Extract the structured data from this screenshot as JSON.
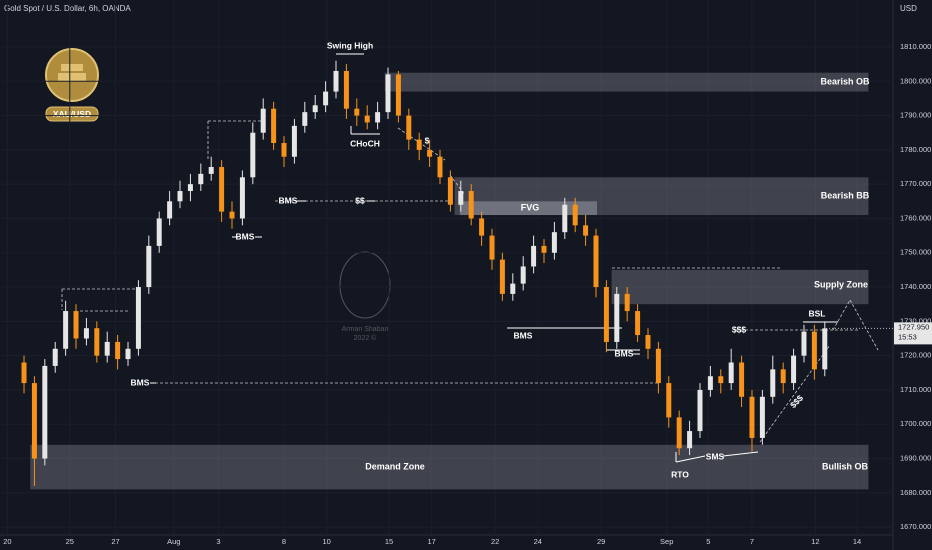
{
  "chart_data": {
    "type": "candlestick",
    "title": "Gold Spot / U.S. Dollar, 6h, OANDA",
    "currency": "USD",
    "badge": "XAU/USD",
    "watermark": [
      "Arman Shaban",
      "2022 ©"
    ],
    "last_price": {
      "value": 1727.95,
      "label": "1727.950"
    },
    "countdown": "15:53",
    "up_color": "#e6e6e6",
    "down_color": "#f7931a",
    "x": [
      0,
      1,
      2,
      3,
      4,
      5,
      6,
      7,
      8,
      9,
      10,
      11,
      12,
      13,
      14,
      15,
      16,
      17,
      18,
      19,
      20,
      21,
      22,
      23,
      24,
      25,
      26,
      27,
      28,
      29,
      30,
      31,
      32,
      33,
      34,
      35,
      36,
      37,
      38,
      39,
      40,
      41,
      42,
      43,
      44,
      45,
      46,
      47,
      48,
      49,
      50,
      51,
      52,
      53,
      54,
      55,
      56,
      57,
      58,
      59,
      60,
      61,
      62,
      63,
      64,
      65,
      66,
      67,
      68,
      69,
      70,
      71,
      72,
      73,
      74,
      75,
      76,
      77
    ],
    "open": [
      1718,
      1712,
      1690,
      1717,
      1722,
      1733,
      1725,
      1728,
      1720,
      1724,
      1719,
      1722,
      1740,
      1752,
      1760,
      1765,
      1768,
      1770,
      1773,
      1775,
      1762,
      1760,
      1772,
      1785,
      1792,
      1782,
      1778,
      1787,
      1791,
      1793,
      1797,
      1803,
      1792,
      1790,
      1788,
      1791,
      1802,
      1790,
      1783,
      1780,
      1778,
      1772,
      1764,
      1768,
      1760,
      1755,
      1748,
      1738,
      1741,
      1746,
      1752,
      1750,
      1756,
      1764,
      1758,
      1755,
      1740,
      1724,
      1738,
      1733,
      1726,
      1722,
      1712,
      1702,
      1693,
      1698,
      1710,
      1714,
      1712,
      1718,
      1708,
      1696,
      1708,
      1716,
      1712,
      1720,
      1727,
      1716
    ],
    "high": [
      1720,
      1714,
      1719,
      1724,
      1736,
      1735,
      1731,
      1730,
      1727,
      1726,
      1724,
      1742,
      1755,
      1762,
      1768,
      1771,
      1773,
      1776,
      1778,
      1777,
      1765,
      1774,
      1788,
      1795,
      1794,
      1784,
      1789,
      1794,
      1796,
      1800,
      1806,
      1805,
      1795,
      1793,
      1794,
      1804,
      1803,
      1792,
      1785,
      1783,
      1780,
      1774,
      1771,
      1770,
      1762,
      1757,
      1750,
      1744,
      1749,
      1755,
      1754,
      1759,
      1766,
      1766,
      1761,
      1757,
      1742,
      1740,
      1740,
      1735,
      1728,
      1724,
      1714,
      1704,
      1701,
      1712,
      1717,
      1716,
      1722,
      1720,
      1710,
      1710,
      1720,
      1718,
      1722,
      1729,
      1729,
      1730
    ],
    "low": [
      1709,
      1682,
      1688,
      1715,
      1720,
      1722,
      1723,
      1718,
      1718,
      1716,
      1717,
      1720,
      1738,
      1750,
      1758,
      1763,
      1765,
      1768,
      1771,
      1759,
      1757,
      1758,
      1770,
      1783,
      1780,
      1775,
      1776,
      1785,
      1789,
      1791,
      1795,
      1789,
      1787,
      1786,
      1786,
      1789,
      1788,
      1780,
      1777,
      1775,
      1770,
      1762,
      1762,
      1758,
      1752,
      1745,
      1736,
      1736,
      1739,
      1744,
      1747,
      1748,
      1754,
      1756,
      1752,
      1737,
      1721,
      1722,
      1730,
      1724,
      1719,
      1709,
      1699,
      1691,
      1691,
      1696,
      1708,
      1709,
      1710,
      1705,
      1692,
      1694,
      1706,
      1709,
      1710,
      1718,
      1713,
      1714
    ],
    "close": [
      1712,
      1690,
      1717,
      1722,
      1733,
      1725,
      1728,
      1720,
      1724,
      1719,
      1722,
      1740,
      1752,
      1760,
      1765,
      1768,
      1770,
      1773,
      1775,
      1762,
      1760,
      1772,
      1785,
      1792,
      1782,
      1778,
      1787,
      1791,
      1793,
      1797,
      1803,
      1792,
      1790,
      1788,
      1791,
      1802,
      1790,
      1783,
      1780,
      1778,
      1772,
      1764,
      1768,
      1760,
      1755,
      1748,
      1738,
      1741,
      1746,
      1752,
      1750,
      1756,
      1764,
      1758,
      1755,
      1740,
      1724,
      1738,
      1733,
      1726,
      1722,
      1712,
      1702,
      1693,
      1698,
      1710,
      1714,
      1712,
      1718,
      1708,
      1696,
      1708,
      1716,
      1712,
      1720,
      1727,
      1716,
      1727.95
    ],
    "xlim": [
      -2.31,
      83.56
    ],
    "xticks": [
      {
        "value": -1.6,
        "label": "20"
      },
      {
        "value": 4.4,
        "label": "25"
      },
      {
        "value": 8.8,
        "label": "27"
      },
      {
        "value": 14.4,
        "label": "Aug"
      },
      {
        "value": 18.7,
        "label": "3"
      },
      {
        "value": 25,
        "label": "8"
      },
      {
        "value": 29.1,
        "label": "10"
      },
      {
        "value": 35.1,
        "label": "15"
      },
      {
        "value": 39.2,
        "label": "17"
      },
      {
        "value": 45.3,
        "label": "22"
      },
      {
        "value": 49.4,
        "label": "24"
      },
      {
        "value": 55.5,
        "label": "29"
      },
      {
        "value": 61.8,
        "label": "Sep"
      },
      {
        "value": 65.8,
        "label": "5"
      },
      {
        "value": 70,
        "label": "7"
      },
      {
        "value": 76.1,
        "label": "12"
      },
      {
        "value": 80.1,
        "label": "14"
      }
    ],
    "ylim": [
      1667.7,
      1823.7
    ],
    "yticks": [
      {
        "value": 1670,
        "label": "1670.000"
      },
      {
        "value": 1680,
        "label": "1680.000"
      },
      {
        "value": 1690,
        "label": "1690.000"
      },
      {
        "value": 1700,
        "label": "1700.000"
      },
      {
        "value": 1710,
        "label": "1710.000"
      },
      {
        "value": 1720,
        "label": "1720.000"
      },
      {
        "value": 1730,
        "label": "1730.000"
      },
      {
        "value": 1740,
        "label": "1740.000"
      },
      {
        "value": 1750,
        "label": "1750.000"
      },
      {
        "value": 1760,
        "label": "1760.000"
      },
      {
        "value": 1770,
        "label": "1770.000"
      },
      {
        "value": 1780,
        "label": "1780.000"
      },
      {
        "value": 1790,
        "label": "1790.000"
      },
      {
        "value": 1800,
        "label": "1800.000"
      },
      {
        "value": 1810,
        "label": "1810.000"
      }
    ],
    "zones": [
      {
        "label": "Bearish OB",
        "y": [
          1797,
          1802.5
        ],
        "x": [
          34.7,
          81.2
        ]
      },
      {
        "label": "Bearish BB",
        "y": [
          1761,
          1772
        ],
        "x": [
          41.4,
          81.2
        ]
      },
      {
        "label": "FVG",
        "y": [
          1761,
          1765
        ],
        "x": [
          41.9,
          55.1
        ]
      },
      {
        "label": "Supply Zone",
        "y": [
          1735,
          1745
        ],
        "x": [
          56.5,
          81.2
        ]
      },
      {
        "label": "Demand Zone",
        "y": [
          1681,
          1694
        ],
        "x": [
          0.6,
          81.2
        ]
      }
    ],
    "annotations": [
      "Swing High",
      "CHoCH",
      "BMS",
      "$$",
      "BMS",
      "BMS",
      "BMS",
      "BMS",
      "$",
      "$$$",
      "BSL",
      "RTO",
      "SMS",
      "$$$",
      "Bullish OB"
    ]
  }
}
